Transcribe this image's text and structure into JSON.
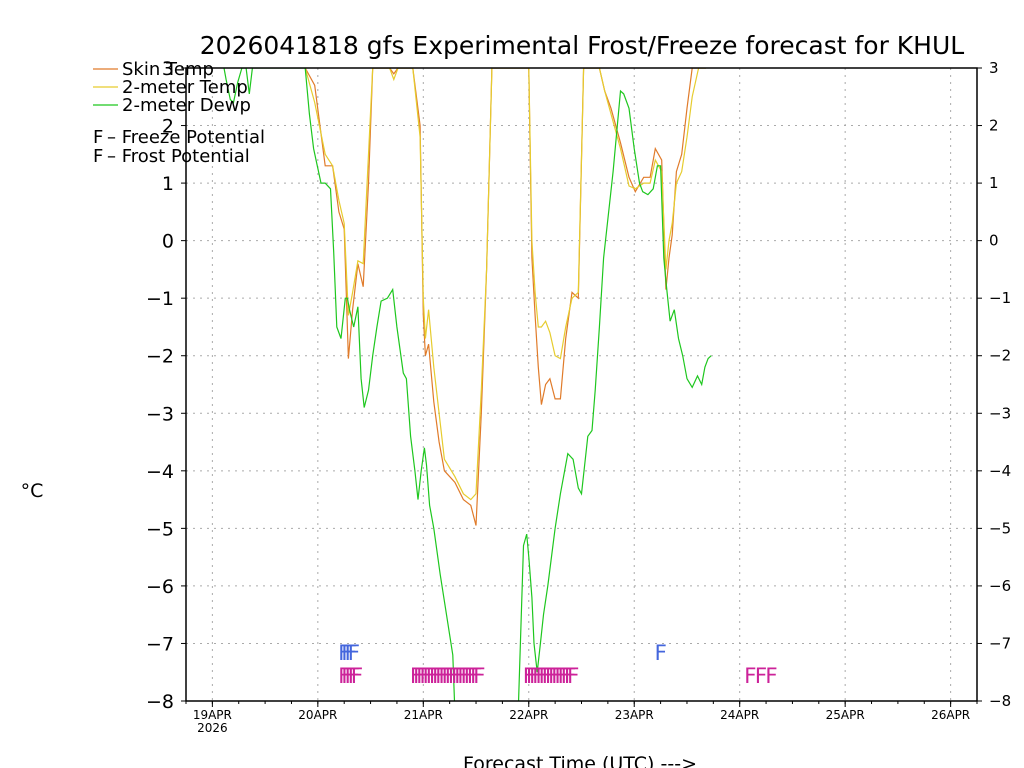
{
  "chart_data": {
    "type": "line",
    "title": "2026041818 gfs Experimental Frost/Freeze forecast for KHUL",
    "xlabel": "Forecast Time (UTC) --->",
    "ylabel": "°C",
    "ylim": [
      -8,
      3
    ],
    "xlim": [
      -0.25,
      7.25
    ],
    "x_unit": "days since 19APR 00Z",
    "yticks": [
      "−8",
      "−7",
      "−6",
      "−5",
      "−4",
      "−3",
      "−2",
      "−1",
      "0",
      "1",
      "2",
      "3"
    ],
    "xticks": [
      {
        "label": "19APR",
        "sub": "2026",
        "x": 0
      },
      {
        "label": "20APR",
        "sub": "",
        "x": 1
      },
      {
        "label": "21APR",
        "sub": "",
        "x": 2
      },
      {
        "label": "22APR",
        "sub": "",
        "x": 3
      },
      {
        "label": "23APR",
        "sub": "",
        "x": 4
      },
      {
        "label": "24APR",
        "sub": "",
        "x": 5
      },
      {
        "label": "25APR",
        "sub": "",
        "x": 6
      },
      {
        "label": "26APR",
        "sub": "",
        "x": 7
      }
    ],
    "series": [
      {
        "name": "Skin Temp",
        "color": "#e07b2a",
        "x": [
          0.88,
          0.97,
          1.07,
          1.14,
          1.2,
          1.25,
          1.29,
          1.33,
          1.38,
          1.43,
          1.48,
          1.52,
          1.57,
          1.6,
          1.65,
          1.68,
          1.72,
          1.76,
          1.8,
          1.9,
          1.97,
          2.0,
          2.02,
          2.05,
          2.1,
          2.15,
          2.2,
          2.3,
          2.38,
          2.45,
          2.5,
          2.55,
          2.6,
          2.65,
          3.0,
          3.03,
          3.06,
          3.09,
          3.12,
          3.16,
          3.2,
          3.25,
          3.3,
          3.35,
          3.41,
          3.47,
          3.52,
          3.57,
          3.62,
          3.67,
          3.72,
          3.78,
          3.87,
          3.95,
          4.01,
          4.09,
          4.15,
          4.2,
          4.26,
          4.3,
          4.33,
          4.36,
          4.4,
          4.45,
          4.5,
          4.55,
          4.61,
          4.68
        ],
        "y": [
          3,
          2.7,
          1.3,
          1.3,
          0.5,
          0.2,
          -2.05,
          -1.2,
          -0.4,
          -0.8,
          1.0,
          3,
          3,
          3,
          3,
          3,
          2.9,
          3,
          3,
          3,
          2.0,
          -1.3,
          -2.0,
          -1.8,
          -2.8,
          -3.5,
          -4.0,
          -4.2,
          -4.5,
          -4.6,
          -4.95,
          -3.0,
          -0.5,
          3,
          3,
          -0.3,
          -1.3,
          -2.2,
          -2.85,
          -2.5,
          -2.4,
          -2.75,
          -2.75,
          -1.7,
          -0.9,
          -1.0,
          3,
          3,
          3,
          3,
          2.6,
          2.3,
          1.7,
          1.1,
          0.85,
          1.1,
          1.1,
          1.6,
          1.4,
          -0.85,
          -0.3,
          0.1,
          1.2,
          1.5,
          2.3,
          3,
          3,
          3
        ]
      },
      {
        "name": "2-meter Temp",
        "color": "#e6cc2e",
        "x": [
          0.88,
          0.97,
          1.07,
          1.14,
          1.2,
          1.25,
          1.29,
          1.33,
          1.38,
          1.43,
          1.48,
          1.52,
          1.57,
          1.6,
          1.65,
          1.68,
          1.72,
          1.76,
          1.8,
          1.9,
          1.97,
          2.0,
          2.02,
          2.05,
          2.1,
          2.15,
          2.2,
          2.3,
          2.38,
          2.45,
          2.5,
          2.55,
          2.6,
          2.65,
          3.0,
          3.03,
          3.06,
          3.09,
          3.12,
          3.16,
          3.2,
          3.25,
          3.3,
          3.35,
          3.41,
          3.47,
          3.52,
          3.57,
          3.62,
          3.67,
          3.72,
          3.78,
          3.87,
          3.95,
          4.01,
          4.09,
          4.15,
          4.2,
          4.26,
          4.3,
          4.33,
          4.36,
          4.4,
          4.45,
          4.5,
          4.55,
          4.61,
          4.68
        ],
        "y": [
          3,
          2.4,
          1.5,
          1.3,
          0.7,
          0.3,
          -1.3,
          -0.9,
          -0.35,
          -0.4,
          1.5,
          3,
          3,
          3,
          3,
          3,
          2.8,
          3,
          3,
          3,
          1.8,
          -1.0,
          -1.7,
          -1.2,
          -2.2,
          -3.0,
          -3.8,
          -4.1,
          -4.4,
          -4.5,
          -4.4,
          -2.6,
          -0.5,
          3,
          3,
          0.0,
          -0.9,
          -1.5,
          -1.5,
          -1.4,
          -1.6,
          -2.0,
          -2.05,
          -1.5,
          -1.0,
          -0.9,
          3,
          3,
          3,
          3,
          2.6,
          2.2,
          1.6,
          0.95,
          0.9,
          1.0,
          1.0,
          1.4,
          1.2,
          -0.5,
          0.0,
          0.3,
          1.0,
          1.2,
          1.8,
          2.5,
          3,
          3
        ]
      },
      {
        "name": "2-meter Dewp",
        "color": "#1ec71e",
        "x": [
          0.11,
          0.13,
          0.17,
          0.2,
          0.24,
          0.28,
          0.32,
          0.35,
          0.38,
          0.88,
          0.92,
          0.96,
          1.03,
          1.07,
          1.12,
          1.15,
          1.18,
          1.22,
          1.26,
          1.28,
          1.3,
          1.34,
          1.38,
          1.41,
          1.44,
          1.48,
          1.52,
          1.56,
          1.6,
          1.66,
          1.71,
          1.75,
          1.78,
          1.81,
          1.84,
          1.88,
          1.92,
          1.95,
          1.98,
          2.01,
          2.03,
          2.06,
          2.1,
          2.16,
          2.22,
          2.28,
          2.3,
          2.7,
          2.9,
          2.95,
          2.98,
          3.0,
          3.03,
          3.05,
          3.08,
          3.11,
          3.14,
          3.18,
          3.25,
          3.3,
          3.37,
          3.42,
          3.47,
          3.5,
          3.56,
          3.6,
          3.63,
          3.67,
          3.71,
          3.8,
          3.87,
          3.9,
          3.95,
          4.0,
          4.05,
          4.08,
          4.13,
          4.18,
          4.22,
          4.25,
          4.28,
          4.3,
          4.34,
          4.38,
          4.42,
          4.46,
          4.5,
          4.55,
          4.6,
          4.64,
          4.67,
          4.7,
          4.73
        ],
        "y": [
          3,
          2.8,
          2.45,
          2.4,
          2.75,
          3,
          3,
          2.55,
          3,
          3,
          2.2,
          1.6,
          1.0,
          1.0,
          0.9,
          -0.2,
          -1.5,
          -1.7,
          -1.0,
          -1.0,
          -1.2,
          -1.5,
          -1.15,
          -2.4,
          -2.9,
          -2.6,
          -2.0,
          -1.5,
          -1.05,
          -1.0,
          -0.85,
          -1.5,
          -1.9,
          -2.3,
          -2.4,
          -3.4,
          -4.0,
          -4.5,
          -4.0,
          -3.6,
          -3.9,
          -4.6,
          -5.0,
          -5.8,
          -6.5,
          -7.2,
          -8.2,
          -8.2,
          -8.2,
          -5.3,
          -5.1,
          -5.5,
          -6.2,
          -7.0,
          -7.5,
          -7.0,
          -6.5,
          -6.0,
          -5.0,
          -4.4,
          -3.7,
          -3.8,
          -4.3,
          -4.4,
          -3.4,
          -3.3,
          -2.6,
          -1.5,
          -0.3,
          1.2,
          2.6,
          2.55,
          2.3,
          1.6,
          1.0,
          0.85,
          0.8,
          0.9,
          1.3,
          1.3,
          -0.3,
          -0.7,
          -1.4,
          -1.2,
          -1.7,
          -2.0,
          -2.4,
          -2.55,
          -2.35,
          -2.5,
          -2.2,
          -2.05,
          -2.0
        ]
      }
    ],
    "legend": [
      {
        "label": "Skin Temp",
        "color": "#e07b2a"
      },
      {
        "label": "2-meter Temp",
        "color": "#e6cc2e"
      },
      {
        "label": "2-meter Dewp",
        "color": "#1ec71e"
      }
    ],
    "potential_legend": [
      {
        "symbol": "F",
        "label": " – Freeze Potential",
        "color": "#cc2299"
      },
      {
        "symbol": "F",
        "label": " – Frost Potential",
        "color": "#4466dd"
      }
    ],
    "frost_markers": {
      "color": "#4466dd",
      "y": -7.15,
      "text": "F",
      "x": [
        1.25,
        1.28,
        1.31,
        1.34,
        4.25
      ]
    },
    "freeze_markers": {
      "color": "#cc2299",
      "y": -7.55,
      "text": "F",
      "x": [
        1.25,
        1.28,
        1.31,
        1.34,
        1.37,
        1.93,
        1.96,
        1.99,
        2.02,
        2.05,
        2.08,
        2.11,
        2.14,
        2.17,
        2.2,
        2.23,
        2.26,
        2.29,
        2.32,
        2.35,
        2.38,
        2.41,
        2.44,
        2.47,
        2.5,
        2.53,
        3.0,
        3.03,
        3.06,
        3.09,
        3.12,
        3.15,
        3.18,
        3.21,
        3.24,
        3.27,
        3.3,
        3.33,
        3.36,
        3.39,
        3.42,
        5.1,
        5.2,
        5.3
      ]
    }
  }
}
